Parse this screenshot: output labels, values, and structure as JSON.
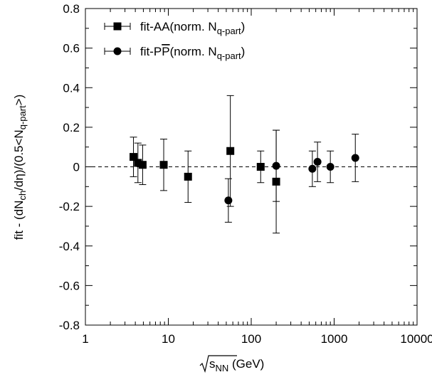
{
  "chart_data": {
    "type": "scatter",
    "xscale": "log",
    "xlim": [
      1,
      10000
    ],
    "ylim": [
      -0.8,
      0.8
    ],
    "xticks": [
      1,
      10,
      100,
      1000,
      10000
    ],
    "xtick_labels": [
      "1",
      "10",
      "100",
      "1000",
      "10000"
    ],
    "yticks": [
      -0.8,
      -0.6,
      -0.4,
      -0.2,
      0,
      0.2,
      0.4,
      0.6,
      0.8
    ],
    "ytick_labels": [
      "-0.8",
      "-0.6",
      "-0.4",
      "-0.2",
      "0",
      "0.2",
      "0.4",
      "0.6",
      "0.8"
    ],
    "xlabel": "√sNN (GeV)",
    "ylabel": "fit - (dNch/dη)/(0.5<Nq-part>)",
    "reference_line": {
      "y": 0,
      "style": "dashed"
    },
    "grid": false,
    "legend_position": "top-left",
    "series": [
      {
        "name": "fit-AA(norm. Nq-part)",
        "marker": "square",
        "points": [
          {
            "x": 3.8,
            "y": 0.05,
            "err": 0.1
          },
          {
            "x": 4.3,
            "y": 0.02,
            "err": 0.1
          },
          {
            "x": 4.9,
            "y": 0.01,
            "err": 0.1
          },
          {
            "x": 8.8,
            "y": 0.01,
            "err": 0.13
          },
          {
            "x": 17.3,
            "y": -0.05,
            "err": 0.13
          },
          {
            "x": 56,
            "y": 0.08,
            "err": 0.28
          },
          {
            "x": 130,
            "y": 0.0,
            "err": 0.08
          },
          {
            "x": 200,
            "y": -0.075,
            "err": 0.26
          }
        ]
      },
      {
        "name": "fit-PP(norm. Nq-part)",
        "marker": "circle",
        "points": [
          {
            "x": 53,
            "y": -0.17,
            "err": 0.11
          },
          {
            "x": 200,
            "y": 0.005,
            "err": 0.18
          },
          {
            "x": 546,
            "y": -0.01,
            "err": 0.09
          },
          {
            "x": 630,
            "y": 0.025,
            "err": 0.1
          },
          {
            "x": 900,
            "y": 0.0,
            "err": 0.08
          },
          {
            "x": 1800,
            "y": 0.045,
            "err": 0.12
          }
        ]
      }
    ]
  }
}
